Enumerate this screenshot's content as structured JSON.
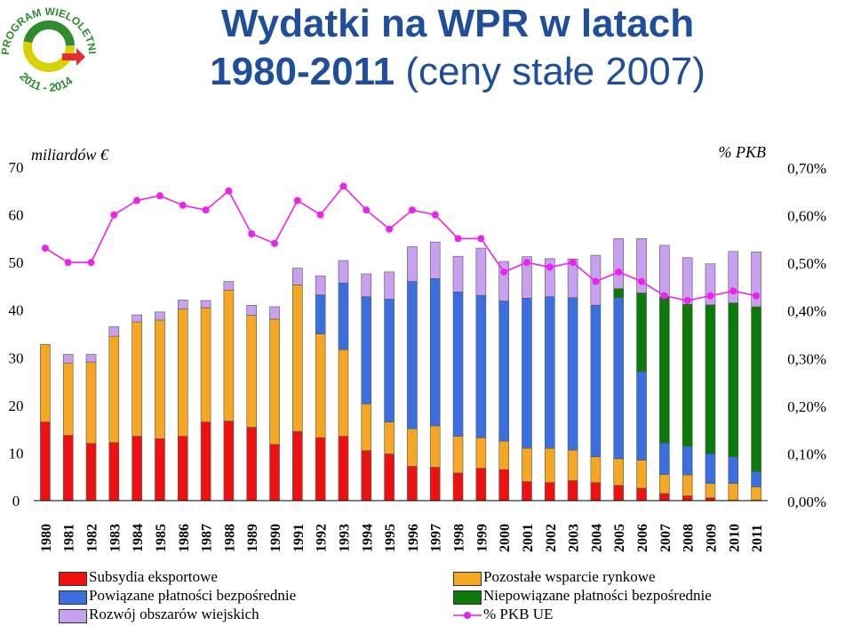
{
  "title": {
    "line1": "Wydatki na WPR w latach",
    "line2_bold": "1980-2011",
    "line2_rest": " (ceny stałe 2007)"
  },
  "logo": {
    "text_top": "PROGRAM WIELOLETNI",
    "text_bottom": "2011 - 2014",
    "colors": {
      "green": "#2e8b2e",
      "yellow": "#d8d000",
      "red": "#e03030"
    }
  },
  "chart_data": {
    "type": "bar",
    "stacked": true,
    "left_axis": {
      "label": "miliardów €",
      "ticks": [
        "0",
        "10",
        "20",
        "30",
        "40",
        "50",
        "60",
        "70"
      ],
      "ylim": [
        0,
        70
      ]
    },
    "right_axis": {
      "label": "% PKB",
      "ticks": [
        "0,00%",
        "0,10%",
        "0,20%",
        "0,30%",
        "0,40%",
        "0,50%",
        "0,60%",
        "0,70%"
      ],
      "ylim": [
        0,
        0.7
      ]
    },
    "categories": [
      "1980",
      "1981",
      "1982",
      "1983",
      "1984",
      "1985",
      "1986",
      "1987",
      "1988",
      "1989",
      "1990",
      "1991",
      "1992",
      "1993",
      "1994",
      "1995",
      "1996",
      "1997",
      "1998",
      "1999",
      "2000",
      "2001",
      "2002",
      "2003",
      "2004",
      "2005",
      "2006",
      "2007",
      "2008",
      "2009",
      "2010",
      "2011"
    ],
    "series": [
      {
        "name": "Subsydia eksportowe",
        "color": "#ee1111",
        "values": [
          16.5,
          13.7,
          12.0,
          12.2,
          13.5,
          13.0,
          13.5,
          16.5,
          16.7,
          15.4,
          11.8,
          14.5,
          13.2,
          13.5,
          10.5,
          9.8,
          7.2,
          7.0,
          5.8,
          6.8,
          6.5,
          4.0,
          3.8,
          4.2,
          3.8,
          3.2,
          2.6,
          1.5,
          1.0,
          0.6,
          0.1,
          0.1
        ]
      },
      {
        "name": "Pozostałe wsparcie rynkowe",
        "color": "#f5a623",
        "values": [
          16.3,
          15.2,
          17.1,
          22.3,
          24.0,
          24.9,
          26.7,
          24.0,
          27.5,
          23.5,
          26.3,
          30.8,
          21.8,
          18.2,
          9.8,
          6.7,
          7.9,
          8.7,
          7.7,
          6.4,
          6.0,
          7.0,
          7.2,
          6.4,
          5.4,
          5.6,
          5.9,
          4.0,
          4.4,
          3.0,
          3.5,
          2.8
        ]
      },
      {
        "name": "Powiązane płatności bezpośrednie",
        "color": "#3b6fe0",
        "values": [
          0,
          0,
          0,
          0,
          0,
          0,
          0,
          0,
          0,
          0,
          0,
          0,
          8.2,
          14.0,
          22.5,
          25.8,
          30.9,
          30.9,
          30.3,
          29.9,
          29.4,
          31.5,
          31.8,
          32.0,
          31.8,
          33.8,
          18.6,
          6.6,
          6.0,
          6.2,
          5.6,
          3.2
        ]
      },
      {
        "name": "Niepowiązane płatności bezpośrednie",
        "color": "#0a7a0a",
        "values": [
          0,
          0,
          0,
          0,
          0,
          0,
          0,
          0,
          0,
          0,
          0,
          0,
          0,
          0,
          0,
          0,
          0,
          0,
          0,
          0,
          0,
          0,
          0,
          0,
          0,
          1.9,
          16.5,
          30.6,
          29.8,
          31.3,
          32.3,
          34.6
        ]
      },
      {
        "name": "Rozwój obszarów wiejskich",
        "color": "#c8a0f0",
        "values": [
          0,
          1.8,
          1.6,
          2.0,
          1.5,
          1.7,
          1.9,
          1.5,
          1.8,
          2.1,
          2.6,
          3.5,
          4.0,
          4.7,
          4.8,
          5.7,
          7.3,
          7.7,
          7.5,
          9.9,
          8.3,
          8.7,
          8.0,
          8.1,
          10.5,
          10.5,
          11.4,
          10.9,
          9.8,
          8.6,
          10.8,
          11.5
        ]
      }
    ],
    "line": {
      "name": "% PKB UE",
      "color": "#ee22ee",
      "values": [
        0.53,
        0.5,
        0.5,
        0.6,
        0.63,
        0.64,
        0.62,
        0.61,
        0.65,
        0.56,
        0.54,
        0.63,
        0.6,
        0.66,
        0.61,
        0.57,
        0.61,
        0.6,
        0.55,
        0.55,
        0.48,
        0.5,
        0.49,
        0.5,
        0.46,
        0.48,
        0.46,
        0.43,
        0.42,
        0.43,
        0.44,
        0.43
      ]
    }
  },
  "legend": {
    "items": [
      {
        "label": "Subsydia eksportowe",
        "color": "#ee1111"
      },
      {
        "label": "Powiązane płatności bezpośrednie",
        "color": "#3b6fe0"
      },
      {
        "label": "Rozwój obszarów wiejskich",
        "color": "#c8a0f0"
      },
      {
        "label": "Pozostałe wsparcie rynkowe",
        "color": "#f5a623"
      },
      {
        "label": "Niepowiązane płatności bezpośrednie",
        "color": "#0a7a0a"
      },
      {
        "label": "% PKB UE",
        "color": "#ee22ee"
      }
    ]
  }
}
